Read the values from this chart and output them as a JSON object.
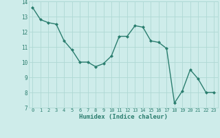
{
  "x": [
    0,
    1,
    2,
    3,
    4,
    5,
    6,
    7,
    8,
    9,
    10,
    11,
    12,
    13,
    14,
    15,
    16,
    17,
    18,
    19,
    20,
    21,
    22,
    23
  ],
  "y": [
    13.6,
    12.8,
    12.6,
    12.5,
    11.4,
    10.8,
    10.0,
    10.0,
    9.7,
    9.9,
    10.4,
    11.7,
    11.7,
    12.4,
    12.3,
    11.4,
    11.3,
    10.9,
    7.3,
    8.1,
    9.5,
    8.9,
    8.0,
    8.0
  ],
  "xlim": [
    -0.5,
    23.5
  ],
  "ylim": [
    7,
    14
  ],
  "xticks": [
    0,
    1,
    2,
    3,
    4,
    5,
    6,
    7,
    8,
    9,
    10,
    11,
    12,
    13,
    14,
    15,
    16,
    17,
    18,
    19,
    20,
    21,
    22,
    23
  ],
  "yticks": [
    7,
    8,
    9,
    10,
    11,
    12,
    13,
    14
  ],
  "xlabel": "Humidex (Indice chaleur)",
  "line_color": "#2a7d6e",
  "marker": "D",
  "marker_size": 2.0,
  "bg_color": "#ceecea",
  "grid_color": "#aed8d4",
  "figsize": [
    3.2,
    2.0
  ],
  "dpi": 100
}
